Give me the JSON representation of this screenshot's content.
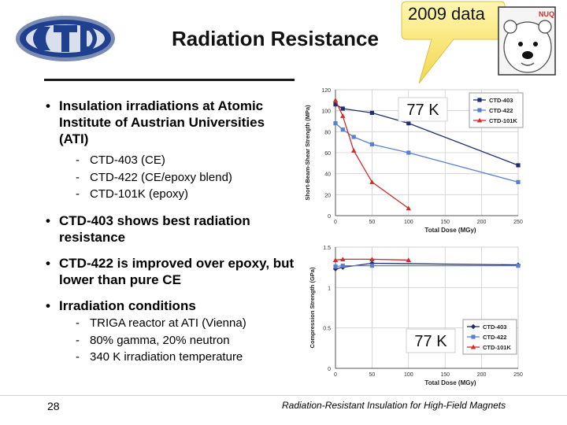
{
  "slide": {
    "title": "Radiation Resistance",
    "logo_text": "CTD",
    "callout": "2009 data",
    "bear_badge": "NUQ",
    "bullets": [
      {
        "text": "Insulation irradiations at Atomic Institute of Austrian Universities (ATI)",
        "subs": [
          "CTD-403 (CE)",
          "CTD-422 (CE/epoxy blend)",
          "CTD-101K (epoxy)"
        ]
      },
      {
        "text": "CTD-403 shows best radiation resistance",
        "subs": []
      },
      {
        "text": "CTD-422 is improved over epoxy, but lower than pure CE",
        "subs": []
      },
      {
        "text": "Irradiation conditions",
        "subs": [
          "TRIGA reactor at ATI (Vienna)",
          "80% gamma, 20% neutron",
          "340 K irradiation temperature"
        ]
      }
    ],
    "bullet_marker": "•",
    "sub_marker": "-",
    "page_number": "28",
    "footer": "Radiation-Resistant Insulation for High-Field Magnets"
  },
  "chart_data": [
    {
      "type": "line",
      "temperature_label": "77 K",
      "xlabel": "Total Dose (MGy)",
      "ylabel": "Short-Beam-Shear Strength (MPa)",
      "xlim": [
        0,
        250
      ],
      "ylim": [
        0,
        120
      ],
      "xticks": [
        0,
        50,
        100,
        150,
        200,
        250
      ],
      "yticks": [
        0,
        20,
        40,
        60,
        80,
        100,
        120
      ],
      "grid": true,
      "legend": "top-right",
      "series": [
        {
          "name": "CTD-403",
          "color": "#1f2d6e",
          "marker": "square",
          "x": [
            0,
            10,
            50,
            100,
            250
          ],
          "y": [
            106,
            102,
            98,
            88,
            48
          ]
        },
        {
          "name": "CTD-422",
          "color": "#5b7fd0",
          "marker": "square",
          "x": [
            0,
            10,
            25,
            50,
            100,
            250
          ],
          "y": [
            88,
            82,
            75,
            68,
            60,
            32
          ]
        },
        {
          "name": "CTD-101K",
          "color": "#d62a2a",
          "marker": "triangle",
          "x": [
            0,
            10,
            25,
            50,
            100
          ],
          "y": [
            110,
            95,
            62,
            32,
            7
          ]
        }
      ]
    },
    {
      "type": "line",
      "temperature_label": "77 K",
      "xlabel": "Total Dose (MGy)",
      "ylabel": "Compression Strength (GPa)",
      "xlim": [
        0,
        250
      ],
      "ylim": [
        0,
        1.5
      ],
      "xticks": [
        0,
        50,
        100,
        150,
        200,
        250
      ],
      "yticks": [
        0,
        0.5,
        1,
        1.5
      ],
      "grid": true,
      "legend": "bottom-right",
      "series": [
        {
          "name": "CTD-403",
          "color": "#1f2d6e",
          "marker": "diamond",
          "x": [
            0,
            10,
            50,
            250
          ],
          "y": [
            1.23,
            1.25,
            1.3,
            1.28
          ]
        },
        {
          "name": "CTD-422",
          "color": "#5b7fd0",
          "marker": "square",
          "x": [
            0,
            10,
            50,
            250
          ],
          "y": [
            1.26,
            1.27,
            1.27,
            1.27
          ]
        },
        {
          "name": "CTD-101K",
          "color": "#d62a2a",
          "marker": "triangle",
          "x": [
            0,
            10,
            50,
            100
          ],
          "y": [
            1.34,
            1.35,
            1.35,
            1.34
          ]
        }
      ]
    }
  ]
}
